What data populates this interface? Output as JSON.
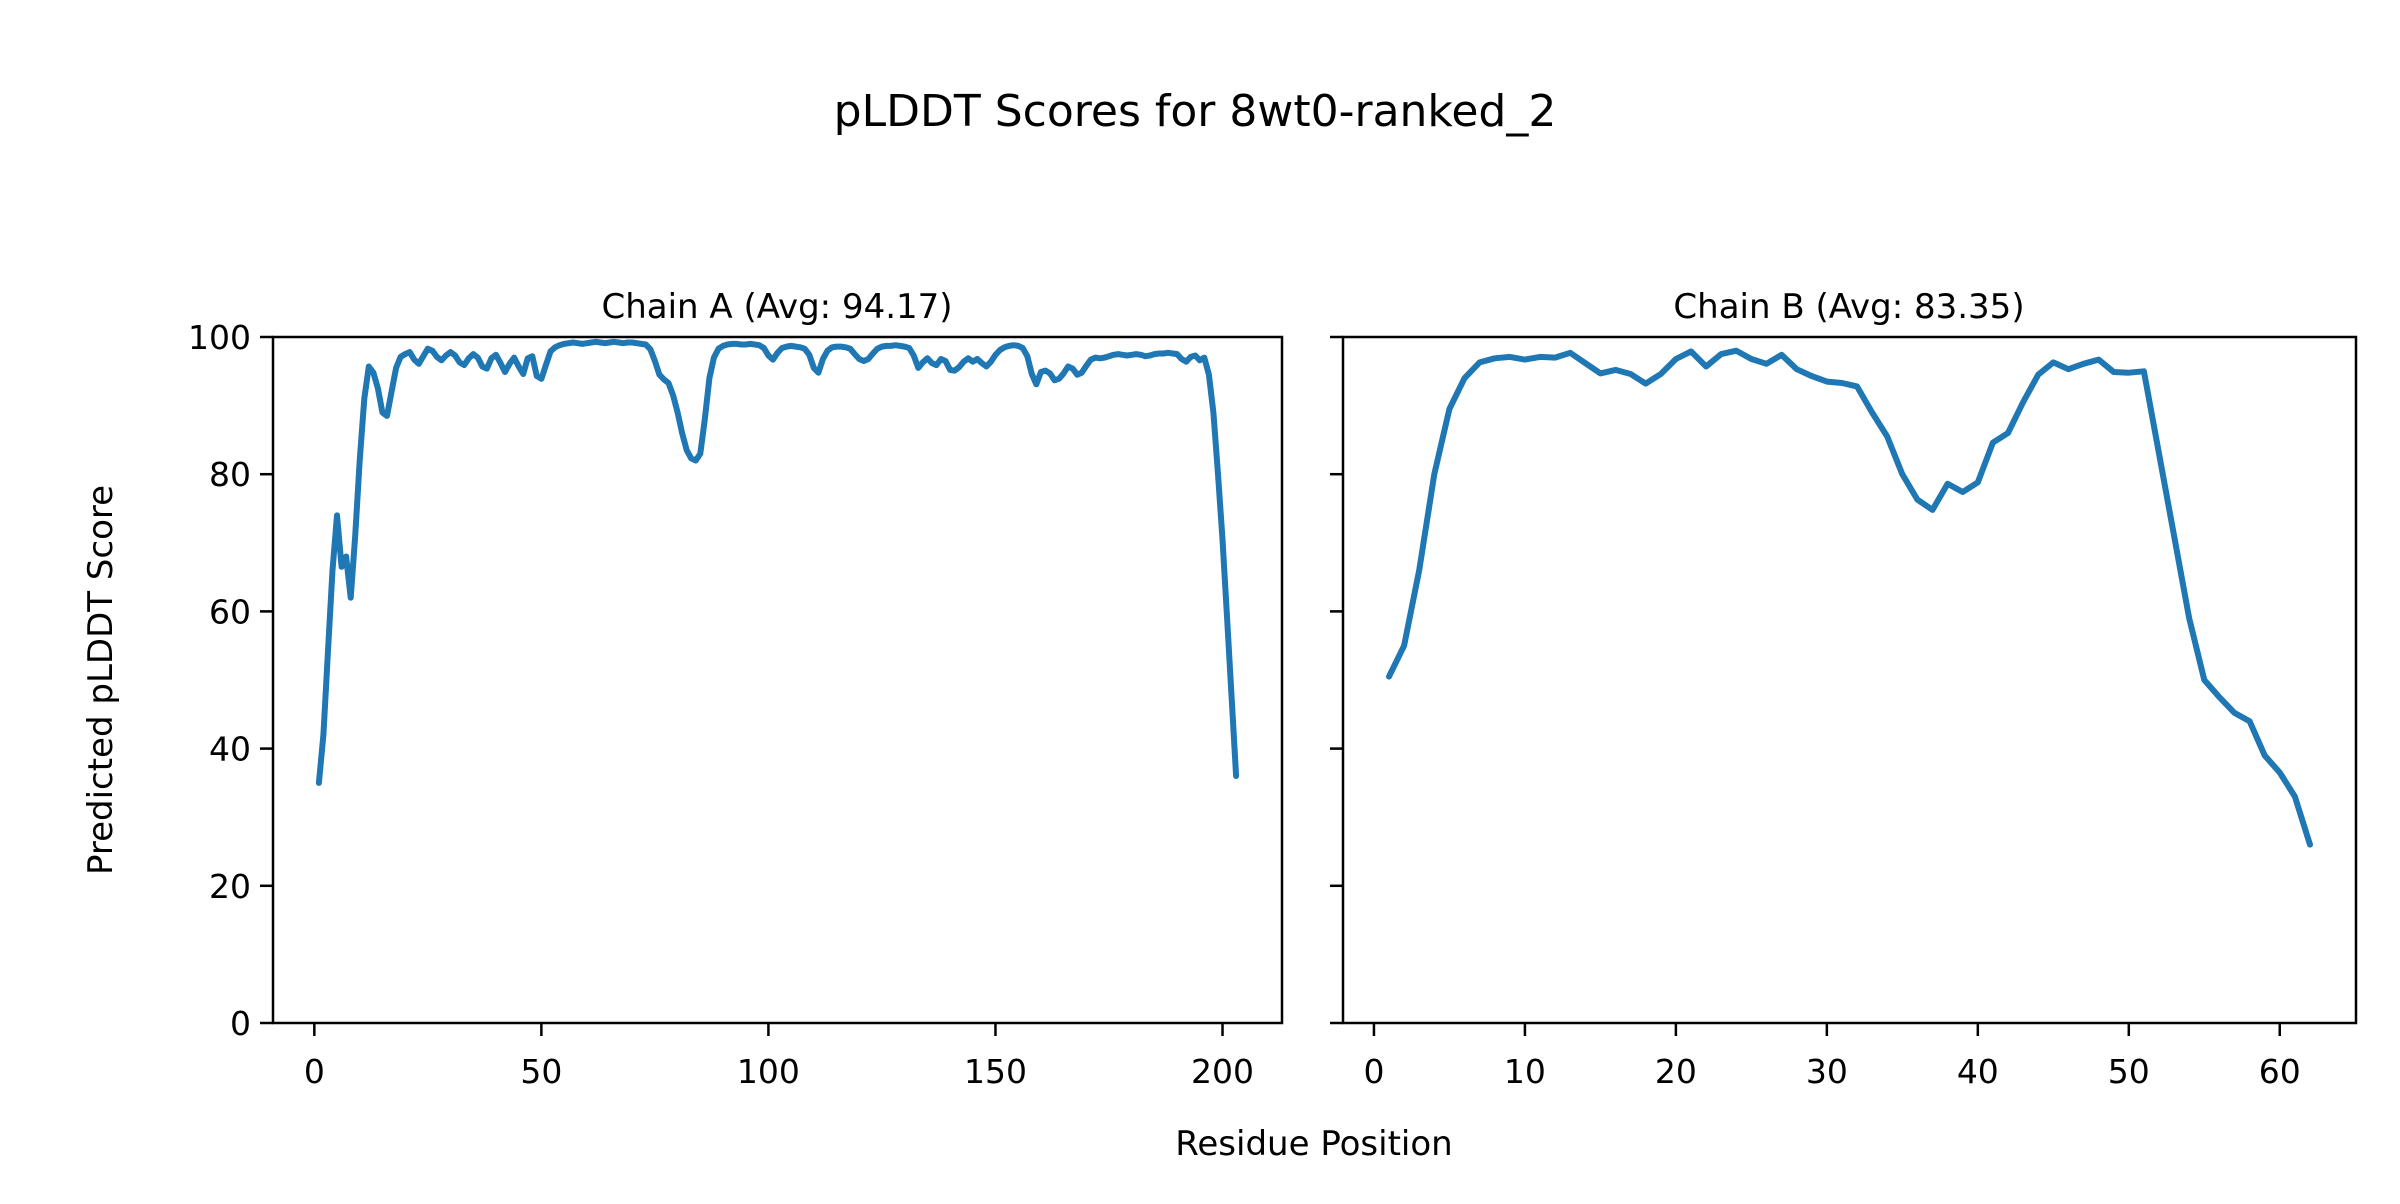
{
  "figure": {
    "suptitle": "pLDDT Scores for 8wt0-ranked_2",
    "xlabel": "Residue Position",
    "ylabel": "Predicted pLDDT Score",
    "line_color": "#1f77b4",
    "background_color": "#ffffff",
    "spine_color": "#000000"
  },
  "chart_data": [
    {
      "type": "line",
      "title": "Chain A (Avg: 94.17)",
      "chain": "A",
      "avg_label": "94.17",
      "x_ticks": [
        0,
        50,
        100,
        150,
        200
      ],
      "y_ticks": [
        0,
        20,
        40,
        60,
        80,
        100
      ],
      "xlim": [
        -9.1,
        213.1
      ],
      "ylim": [
        0,
        100
      ],
      "x_start": 1,
      "values": [
        35,
        42,
        54,
        66,
        74,
        66.5,
        68,
        62,
        71,
        82,
        91,
        95.7,
        94.8,
        92.5,
        89,
        88.5,
        92,
        95.5,
        97.1,
        97.5,
        97.8,
        96.7,
        96.1,
        97.2,
        98.3,
        98,
        97.1,
        96.6,
        97.3,
        97.8,
        97.3,
        96.3,
        95.9,
        96.9,
        97.5,
        97,
        95.7,
        95.4,
        96.9,
        97.4,
        96.2,
        94.9,
        96.1,
        97,
        95.7,
        94.6,
        96.9,
        97.2,
        94.3,
        93.9,
        95.9,
        97.9,
        98.5,
        98.8,
        99,
        99.1,
        99.2,
        99.1,
        99,
        99.1,
        99.2,
        99.3,
        99.2,
        99.1,
        99.2,
        99.3,
        99.2,
        99.1,
        99.2,
        99.2,
        99.1,
        99,
        98.9,
        98.2,
        96.5,
        94.5,
        93.8,
        93.3,
        91.5,
        89,
        86,
        83.5,
        82.3,
        82,
        83,
        88,
        94,
        97,
        98.3,
        98.7,
        98.9,
        99,
        99,
        98.9,
        98.9,
        99,
        98.9,
        98.8,
        98.4,
        97.3,
        96.7,
        97.7,
        98.4,
        98.6,
        98.7,
        98.6,
        98.5,
        98.3,
        97.4,
        95.5,
        94.8,
        96.8,
        98,
        98.5,
        98.6,
        98.6,
        98.5,
        98.3,
        97.5,
        96.8,
        96.5,
        96.8,
        97.6,
        98.3,
        98.6,
        98.7,
        98.7,
        98.8,
        98.7,
        98.6,
        98.4,
        97.3,
        95.5,
        96.3,
        96.9,
        96.2,
        95.9,
        96.8,
        96.5,
        95.2,
        95.1,
        95.6,
        96.4,
        96.9,
        96.4,
        96.8,
        96.2,
        95.7,
        96.4,
        97.4,
        98.1,
        98.5,
        98.7,
        98.8,
        98.7,
        98.4,
        97.2,
        94.6,
        93.1,
        94.9,
        95.1,
        94.7,
        93.7,
        93.9,
        94.7,
        95.7,
        95.4,
        94.5,
        94.8,
        95.8,
        96.7,
        97,
        96.9,
        97,
        97.2,
        97.4,
        97.5,
        97.4,
        97.3,
        97.4,
        97.5,
        97.4,
        97.2,
        97.3,
        97.5,
        97.6,
        97.6,
        97.7,
        97.6,
        97.5,
        96.8,
        96.4,
        97.1,
        97.3,
        96.6,
        97,
        94.5,
        89,
        80,
        70.5,
        59,
        47.5,
        36
      ]
    },
    {
      "type": "line",
      "title": "Chain B (Avg: 83.35)",
      "chain": "B",
      "avg_label": "83.35",
      "x_ticks": [
        0,
        10,
        20,
        30,
        40,
        50,
        60
      ],
      "y_ticks": [
        0,
        20,
        40,
        60,
        80,
        100
      ],
      "xlim": [
        -2.05,
        65.05
      ],
      "ylim": [
        0,
        100
      ],
      "x_start": 1,
      "values": [
        50.5,
        55,
        66,
        80,
        89.5,
        94,
        96.3,
        96.9,
        97.1,
        96.7,
        97.1,
        97,
        97.7,
        96.2,
        94.7,
        95.2,
        94.6,
        93.2,
        94.6,
        96.8,
        97.9,
        95.7,
        97.5,
        98,
        96.8,
        96.1,
        97.4,
        95.3,
        94.3,
        93.5,
        93.3,
        92.8,
        89,
        85.5,
        80,
        76.3,
        74.8,
        78.6,
        77.4,
        78.8,
        84.6,
        86,
        90.5,
        94.5,
        96.3,
        95.3,
        96.1,
        96.7,
        94.9,
        94.8,
        95,
        83,
        71,
        59,
        50,
        47.5,
        45.2,
        44,
        39,
        36.5,
        33,
        26
      ]
    }
  ]
}
